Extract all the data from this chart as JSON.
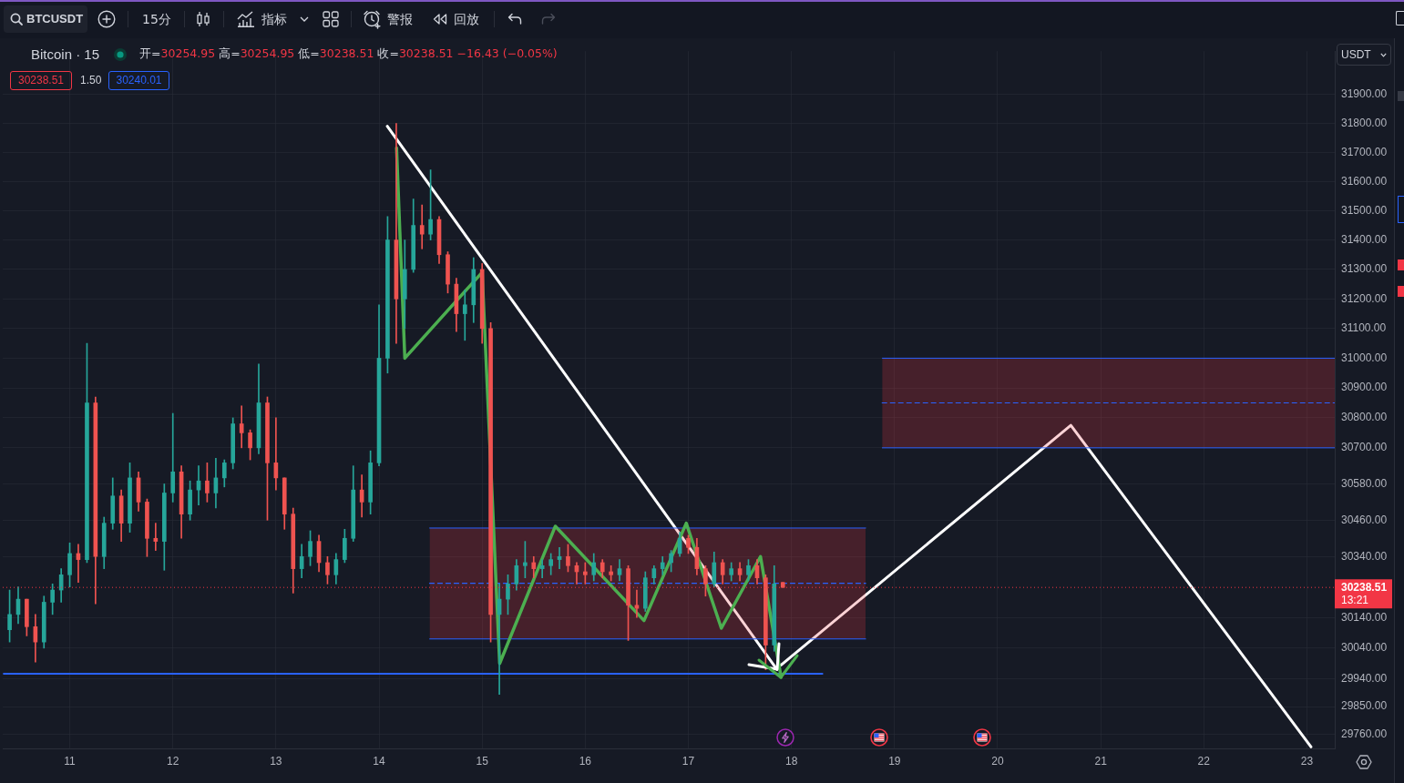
{
  "chart_data": {
    "type": "candlestick",
    "title": "Bitcoin · 15",
    "subtitle": "开=30254.95 高=30254.95 低=30238.51 收=30238.51 −16.43 (−0.05%)",
    "x": [
      10.417,
      10.5,
      10.583,
      10.667,
      10.75,
      10.833,
      10.917,
      11,
      11.083,
      11.167,
      11.25,
      11.333,
      11.417,
      11.5,
      11.583,
      11.667,
      11.75,
      11.833,
      11.917,
      12,
      12.083,
      12.167,
      12.25,
      12.333,
      12.417,
      12.5,
      12.583,
      12.667,
      12.75,
      12.833,
      12.917,
      13,
      13.083,
      13.167,
      13.25,
      13.333,
      13.417,
      13.5,
      13.583,
      13.667,
      13.75,
      13.833,
      13.917,
      14,
      14.083,
      14.167,
      14.25,
      14.333,
      14.417,
      14.5,
      14.583,
      14.667,
      14.75,
      14.833,
      14.917,
      15,
      15.083,
      15.167,
      15.25,
      15.333,
      15.417,
      15.5,
      15.583,
      15.667,
      15.75,
      15.833,
      15.917,
      16,
      16.083,
      16.167,
      16.25,
      16.333,
      16.417,
      16.5,
      16.583,
      16.667,
      16.75,
      16.833,
      16.917,
      17,
      17.083,
      17.167,
      17.25,
      17.333,
      17.417,
      17.5,
      17.583,
      17.667,
      17.75,
      17.833,
      17.917
    ],
    "ohlc": [
      [
        30100,
        30230,
        30060,
        30150
      ],
      [
        30150,
        30240,
        30120,
        30200
      ],
      [
        30200,
        30200,
        30080,
        30110
      ],
      [
        30110,
        30150,
        29995,
        30060
      ],
      [
        30060,
        30210,
        30040,
        30190
      ],
      [
        30190,
        30250,
        30150,
        30230
      ],
      [
        30230,
        30300,
        30190,
        30280
      ],
      [
        30280,
        30385,
        30240,
        30350
      ],
      [
        30350,
        30380,
        30255,
        30330
      ],
      [
        30330,
        31050,
        30320,
        30850
      ],
      [
        30850,
        30870,
        30185,
        30340
      ],
      [
        30340,
        30470,
        30300,
        30450
      ],
      [
        30450,
        30600,
        30430,
        30540
      ],
      [
        30540,
        30560,
        30390,
        30450
      ],
      [
        30450,
        30650,
        30420,
        30600
      ],
      [
        30600,
        30620,
        30490,
        30520
      ],
      [
        30520,
        30530,
        30340,
        30400
      ],
      [
        30400,
        30450,
        30360,
        30390
      ],
      [
        30390,
        30580,
        30295,
        30550
      ],
      [
        30550,
        30815,
        30520,
        30620
      ],
      [
        30620,
        30640,
        30400,
        30480
      ],
      [
        30480,
        30590,
        30460,
        30560
      ],
      [
        30560,
        30640,
        30510,
        30590
      ],
      [
        30590,
        30650,
        30520,
        30550
      ],
      [
        30550,
        30665,
        30500,
        30600
      ],
      [
        30600,
        30660,
        30570,
        30650
      ],
      [
        30650,
        30800,
        30630,
        30780
      ],
      [
        30780,
        30840,
        30700,
        30750
      ],
      [
        30750,
        30760,
        30660,
        30700
      ],
      [
        30700,
        30980,
        30680,
        30850
      ],
      [
        30850,
        30870,
        30460,
        30650
      ],
      [
        30650,
        30800,
        30560,
        30600
      ],
      [
        30600,
        30600,
        30430,
        30480
      ],
      [
        30480,
        30500,
        30220,
        30300
      ],
      [
        30300,
        30380,
        30270,
        30340
      ],
      [
        30340,
        30425,
        30310,
        30390
      ],
      [
        30390,
        30410,
        30290,
        30320
      ],
      [
        30320,
        30340,
        30250,
        30280
      ],
      [
        30280,
        30350,
        30250,
        30330
      ],
      [
        30330,
        30430,
        30320,
        30400
      ],
      [
        30400,
        30640,
        30390,
        30560
      ],
      [
        30560,
        30610,
        30470,
        30520
      ],
      [
        30520,
        30690,
        30480,
        30650
      ],
      [
        30650,
        31180,
        30640,
        31000
      ],
      [
        31000,
        31480,
        30950,
        31400
      ],
      [
        31400,
        31800,
        31050,
        31200
      ],
      [
        31200,
        31400,
        31100,
        31300
      ],
      [
        31300,
        31540,
        31290,
        31450
      ],
      [
        31450,
        31520,
        31370,
        31420
      ],
      [
        31420,
        31640,
        31400,
        31470
      ],
      [
        31470,
        31480,
        31320,
        31350
      ],
      [
        31350,
        31360,
        31220,
        31250
      ],
      [
        31250,
        31270,
        31090,
        31150
      ],
      [
        31150,
        31230,
        31060,
        31180
      ],
      [
        31180,
        31340,
        31120,
        31300
      ],
      [
        31300,
        31320,
        31050,
        31100
      ],
      [
        31100,
        31120,
        30060,
        30150
      ],
      [
        30150,
        30250,
        29890,
        30200
      ],
      [
        30200,
        30280,
        30150,
        30250
      ],
      [
        30250,
        30330,
        30230,
        30310
      ],
      [
        30310,
        30390,
        30270,
        30320
      ],
      [
        30320,
        30340,
        30270,
        30300
      ],
      [
        30300,
        30330,
        30270,
        30310
      ],
      [
        30310,
        30350,
        30280,
        30330
      ],
      [
        30330,
        30370,
        30300,
        30340
      ],
      [
        30340,
        30380,
        30290,
        30310
      ],
      [
        30310,
        30320,
        30250,
        30290
      ],
      [
        30290,
        30320,
        30250,
        30280
      ],
      [
        30280,
        30350,
        30260,
        30320
      ],
      [
        30320,
        30330,
        30270,
        30290
      ],
      [
        30290,
        30310,
        30260,
        30280
      ],
      [
        30280,
        30330,
        30260,
        30300
      ],
      [
        30300,
        30310,
        30065,
        30180
      ],
      [
        30180,
        30230,
        30140,
        30170
      ],
      [
        30170,
        30290,
        30160,
        30270
      ],
      [
        30270,
        30310,
        30250,
        30300
      ],
      [
        30300,
        30340,
        30280,
        30320
      ],
      [
        30320,
        30360,
        30290,
        30350
      ],
      [
        30350,
        30420,
        30340,
        30400
      ],
      [
        30400,
        30410,
        30350,
        30370
      ],
      [
        30370,
        30400,
        30280,
        30300
      ],
      [
        30300,
        30310,
        30210,
        30250
      ],
      [
        30250,
        30355,
        30240,
        30320
      ],
      [
        30320,
        30330,
        30250,
        30280
      ],
      [
        30280,
        30320,
        30260,
        30300
      ],
      [
        30300,
        30320,
        30260,
        30280
      ],
      [
        30280,
        30330,
        30260,
        30310
      ],
      [
        30310,
        30330,
        30250,
        30270
      ],
      [
        30270,
        30280,
        29970,
        30050
      ],
      [
        30050,
        30310,
        30030,
        30250
      ],
      [
        30254.95,
        30254.95,
        30238.51,
        30238.51
      ]
    ],
    "colors": [
      "#26a69a",
      "#26a69a",
      "#ef5350",
      "#ef5350",
      "#26a69a",
      "#26a69a",
      "#26a69a",
      "#26a69a",
      "#ef5350",
      "#26a69a",
      "#ef5350",
      "#26a69a",
      "#26a69a",
      "#ef5350",
      "#26a69a",
      "#ef5350",
      "#ef5350",
      "#ef5350",
      "#26a69a",
      "#26a69a",
      "#ef5350",
      "#26a69a",
      "#26a69a",
      "#ef5350",
      "#26a69a",
      "#26a69a",
      "#26a69a",
      "#ef5350",
      "#ef5350",
      "#26a69a",
      "#ef5350",
      "#ef5350",
      "#ef5350",
      "#ef5350",
      "#26a69a",
      "#26a69a",
      "#ef5350",
      "#ef5350",
      "#26a69a",
      "#26a69a",
      "#26a69a",
      "#ef5350",
      "#26a69a",
      "#26a69a",
      "#26a69a",
      "#ef5350",
      "#26a69a",
      "#26a69a",
      "#ef5350",
      "#26a69a",
      "#ef5350",
      "#ef5350",
      "#ef5350",
      "#26a69a",
      "#26a69a",
      "#ef5350",
      "#ef5350",
      "#26a69a",
      "#26a69a",
      "#26a69a",
      "#26a69a",
      "#ef5350",
      "#26a69a",
      "#26a69a",
      "#26a69a",
      "#ef5350",
      "#ef5350",
      "#ef5350",
      "#26a69a",
      "#ef5350",
      "#ef5350",
      "#26a69a",
      "#ef5350",
      "#ef5350",
      "#26a69a",
      "#26a69a",
      "#26a69a",
      "#26a69a",
      "#26a69a",
      "#ef5350",
      "#ef5350",
      "#ef5350",
      "#26a69a",
      "#ef5350",
      "#26a69a",
      "#ef5350",
      "#26a69a",
      "#ef5350",
      "#ef5350",
      "#26a69a",
      "#ef5350"
    ],
    "series": [
      {
        "type": "line",
        "x": [
          14.08,
          17.86
        ],
        "values": [
          31790,
          29970
        ],
        "color": "#ffffff"
      },
      {
        "type": "line",
        "x": [
          17.9,
          20.71,
          23.04
        ],
        "values": [
          29985,
          30775,
          29720
        ],
        "color": "#ffffff"
      },
      {
        "type": "line",
        "x": [
          14.49,
          18.72
        ],
        "values": [
          30252,
          30252
        ],
        "lower": [
          30070,
          30070
        ],
        "upper": [
          30434,
          30434
        ],
        "color": "#2962ff",
        "line_style": "dashed"
      },
      {
        "type": "line",
        "x": [
          14.49,
          18.72
        ],
        "values": [
          30434,
          30434
        ],
        "color": "#2962ff"
      },
      {
        "type": "line",
        "x": [
          14.49,
          18.72
        ],
        "values": [
          30070,
          30070
        ],
        "color": "#2962ff"
      },
      {
        "type": "line",
        "x": [
          18.88,
          23.27
        ],
        "values": [
          30850,
          30850
        ],
        "lower": [
          30700,
          30700
        ],
        "upper": [
          31000,
          31000
        ],
        "color": "#2962ff",
        "line_style": "dashed"
      },
      {
        "type": "line",
        "x": [
          18.88,
          23.27
        ],
        "values": [
          31000,
          31000
        ],
        "color": "#2962ff"
      },
      {
        "type": "line",
        "x": [
          18.88,
          23.27
        ],
        "values": [
          30700,
          30700
        ],
        "color": "#2962ff"
      },
      {
        "type": "line",
        "x": [
          10.36,
          18.3
        ],
        "values": [
          29957,
          29957
        ],
        "color": "#2962ff"
      },
      {
        "type": "line",
        "x": [
          14.17,
          14.25,
          15,
          15.17,
          15.71,
          16.57,
          16.98,
          17.32,
          17.7,
          17.9
        ],
        "values": [
          31715,
          31000,
          31290,
          29990,
          30440,
          30130,
          30450,
          30105,
          30340,
          29945
        ],
        "color": "#4caf50"
      }
    ],
    "xlim": [
      10.35,
      23.27
    ],
    "ylim": [
      29715,
      32050
    ],
    "log": "y",
    "xticks": [
      11,
      12,
      13,
      14,
      15,
      16,
      17,
      18,
      19,
      20,
      21,
      22,
      23
    ],
    "yticks": [
      {
        "value": 31900,
        "label": "31900.00"
      },
      {
        "value": 31800,
        "label": "31800.00"
      },
      {
        "value": 31700,
        "label": "31700.00"
      },
      {
        "value": 31600,
        "label": "31600.00"
      },
      {
        "value": 31500,
        "label": "31500.00"
      },
      {
        "value": 31400,
        "label": "31400.00"
      },
      {
        "value": 31300,
        "label": "31300.00"
      },
      {
        "value": 31200,
        "label": "31200.00"
      },
      {
        "value": 31100,
        "label": "31100.00"
      },
      {
        "value": 31000,
        "label": "31000.00"
      },
      {
        "value": 30900,
        "label": "30900.00"
      },
      {
        "value": 30800,
        "label": "30800.00"
      },
      {
        "value": 30700,
        "label": "30700.00"
      },
      {
        "value": 30580,
        "label": "30580.00"
      },
      {
        "value": 30460,
        "label": "30460.00"
      },
      {
        "value": 30340,
        "label": "30340.00"
      },
      {
        "value": 30140,
        "label": "30140.00"
      },
      {
        "value": 30040,
        "label": "30040.00"
      },
      {
        "value": 29940,
        "label": "29940.00"
      },
      {
        "value": 29850,
        "label": "29850.00"
      },
      {
        "value": 29760,
        "label": "29760.00"
      }
    ],
    "ref_lines": [
      {
        "axis": "y",
        "value": 30238.51,
        "label": "30238.51",
        "color": "#f23645",
        "line_style": "dotted"
      }
    ],
    "annotations": [
      "BTCUSDT",
      "15分",
      "指标",
      "警报",
      "回放",
      "30238.51",
      "1.50",
      "30240.01",
      "USDT",
      "13:21"
    ],
    "grid": true
  }
}
